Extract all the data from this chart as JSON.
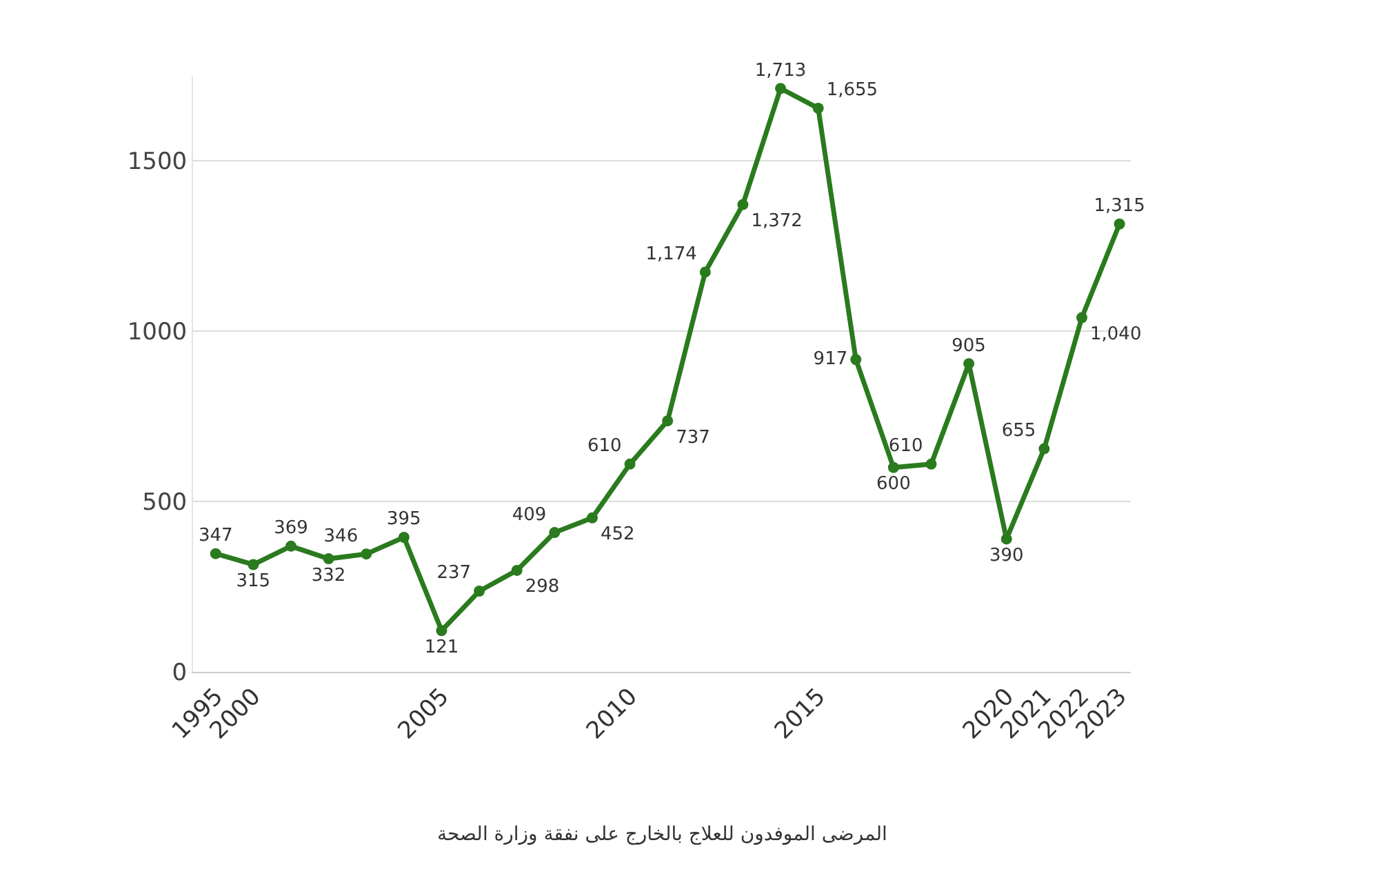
{
  "chart_data": {
    "type": "line",
    "annotations": [
      "المرضى الموفدون للعلاج بالخارج على نفقة وزارة الصحة"
    ],
    "categories": [
      "1995",
      "2000",
      null,
      null,
      null,
      null,
      "2005",
      null,
      null,
      null,
      null,
      "2010",
      null,
      null,
      null,
      null,
      "2015",
      null,
      null,
      null,
      null,
      "2020",
      "2021",
      "2022",
      "2023"
    ],
    "series": [
      {
        "color": "#2a7a1e",
        "values": [
          347,
          315,
          369,
          332,
          346,
          395,
          121,
          237,
          298,
          409,
          452,
          610,
          737,
          1174,
          1372,
          1713,
          1655,
          917,
          600,
          610,
          905,
          390,
          655,
          1040,
          1315
        ],
        "value_labels": [
          "347",
          "315",
          "369",
          "332",
          "346",
          "395",
          "121",
          "237",
          "298",
          "409",
          "452",
          "610",
          "737",
          "1,174",
          "1,372",
          "1,713",
          "1,655",
          "917",
          "600",
          "610",
          "905",
          "390",
          "655",
          "1,040",
          "1,315"
        ]
      }
    ],
    "ylim": [
      0,
      1750
    ],
    "yticks": [
      0,
      500,
      1000,
      1500
    ],
    "grid": "y",
    "marker": "circle",
    "line_style": "solid"
  }
}
